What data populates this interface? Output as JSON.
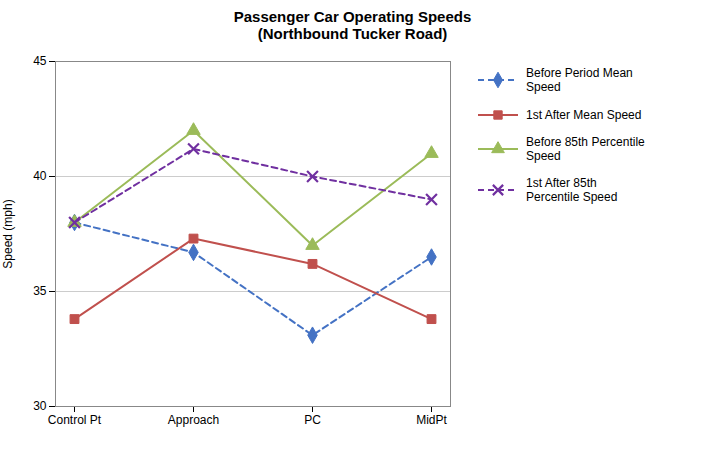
{
  "chart_data": {
    "type": "line",
    "title": "Passenger Car Operating Speeds",
    "subtitle": "(Northbound Tucker Road)",
    "categories": [
      "Control Pt",
      "Approach",
      "PC",
      "MidPt"
    ],
    "ylabel": "Speed (mph)",
    "ylim": [
      30,
      45
    ],
    "yticks": [
      30,
      35,
      40,
      45
    ],
    "grid": true,
    "legend": "right",
    "series": [
      {
        "name": "Before Period Mean\nSpeed",
        "color": "#4472C4",
        "line_style": "dashed",
        "marker": "diamond",
        "values": [
          38.0,
          36.7,
          33.1,
          36.5
        ]
      },
      {
        "name": "1st After Mean Speed",
        "color": "#C0504D",
        "line_style": "solid",
        "marker": "square",
        "values": [
          33.8,
          37.3,
          36.2,
          33.8
        ]
      },
      {
        "name": "Before 85th Percentile\nSpeed",
        "color": "#9BBB59",
        "line_style": "solid",
        "marker": "triangle",
        "values": [
          38.0,
          42.0,
          37.0,
          41.0
        ]
      },
      {
        "name": "1st After 85th\nPercentile Speed",
        "color": "#7030A0",
        "line_style": "dashed",
        "marker": "x",
        "values": [
          38.0,
          41.2,
          40.0,
          39.0
        ]
      }
    ]
  }
}
